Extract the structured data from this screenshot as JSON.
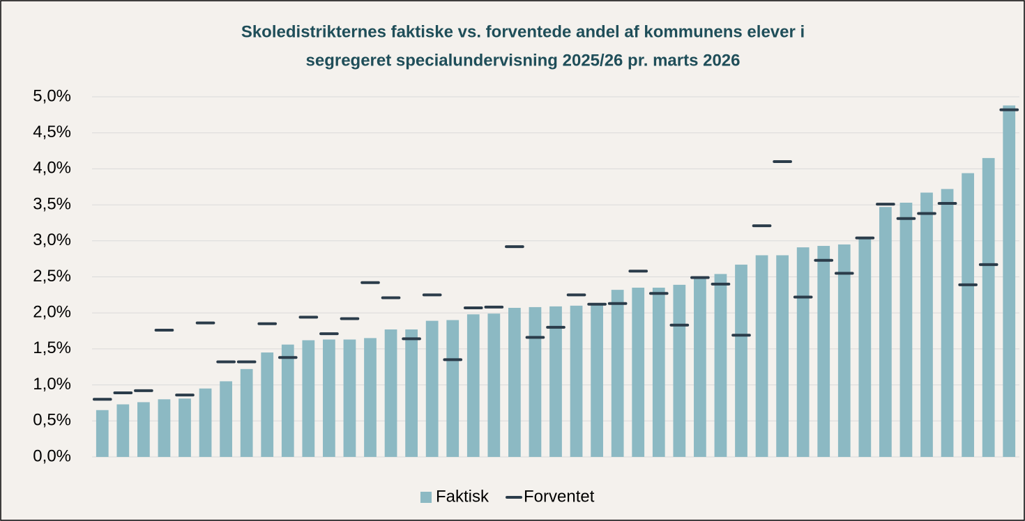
{
  "chart_data": {
    "type": "bar",
    "title": "Skoledistrikternes faktiske vs. forventede andel af kommunens elever i",
    "subtitle": "segregeret specialundervisning 2025/26 pr. marts 2026",
    "categories": [
      null,
      null,
      null,
      null,
      null,
      null,
      null,
      null,
      null,
      null,
      null,
      null,
      null,
      null,
      null,
      null,
      null,
      null,
      null,
      null,
      null,
      null,
      null,
      null,
      null,
      null,
      null,
      null,
      null,
      null,
      null,
      null,
      null,
      null,
      null,
      null,
      null,
      null,
      null,
      null,
      null,
      null,
      null,
      null,
      null
    ],
    "series": [
      {
        "name": "Faktisk",
        "mark": "bar",
        "color": "#8cb9c3",
        "values": [
          0.65,
          0.73,
          0.76,
          0.8,
          0.81,
          0.95,
          1.05,
          1.22,
          1.45,
          1.56,
          1.62,
          1.63,
          1.63,
          1.65,
          1.77,
          1.77,
          1.89,
          1.9,
          1.98,
          1.99,
          2.07,
          2.08,
          2.09,
          2.1,
          2.12,
          2.32,
          2.35,
          2.35,
          2.39,
          2.48,
          2.54,
          2.67,
          2.8,
          2.8,
          2.91,
          2.93,
          2.95,
          3.03,
          3.47,
          3.53,
          3.67,
          3.72,
          3.94,
          4.15,
          4.88
        ]
      },
      {
        "name": "Forventet",
        "mark": "dash",
        "color": "#2b3c4a",
        "values": [
          0.8,
          0.89,
          0.92,
          1.76,
          0.86,
          1.86,
          1.32,
          1.32,
          1.85,
          1.38,
          1.94,
          1.71,
          1.92,
          2.42,
          2.21,
          1.64,
          2.25,
          1.35,
          2.07,
          2.08,
          2.92,
          1.66,
          1.8,
          2.25,
          2.12,
          2.13,
          2.58,
          2.27,
          1.83,
          2.49,
          2.4,
          1.69,
          3.21,
          4.1,
          2.22,
          2.73,
          2.55,
          3.04,
          3.51,
          3.31,
          3.38,
          3.52,
          2.39,
          2.67,
          4.82
        ]
      }
    ],
    "ylim": [
      0,
      5
    ],
    "yticks": [
      {
        "value": 0,
        "label": "0,0%"
      },
      {
        "value": 0.5,
        "label": "0,5%"
      },
      {
        "value": 1,
        "label": "1,0%"
      },
      {
        "value": 1.5,
        "label": "1,5%"
      },
      {
        "value": 2,
        "label": "2,0%"
      },
      {
        "value": 2.5,
        "label": "2,5%"
      },
      {
        "value": 3,
        "label": "3,0%"
      },
      {
        "value": 3.5,
        "label": "3,5%"
      },
      {
        "value": 4,
        "label": "4,0%"
      },
      {
        "value": 4.5,
        "label": "4,5%"
      },
      {
        "value": 5,
        "label": "5,0%"
      }
    ],
    "grid": true,
    "legend": "bottom"
  }
}
